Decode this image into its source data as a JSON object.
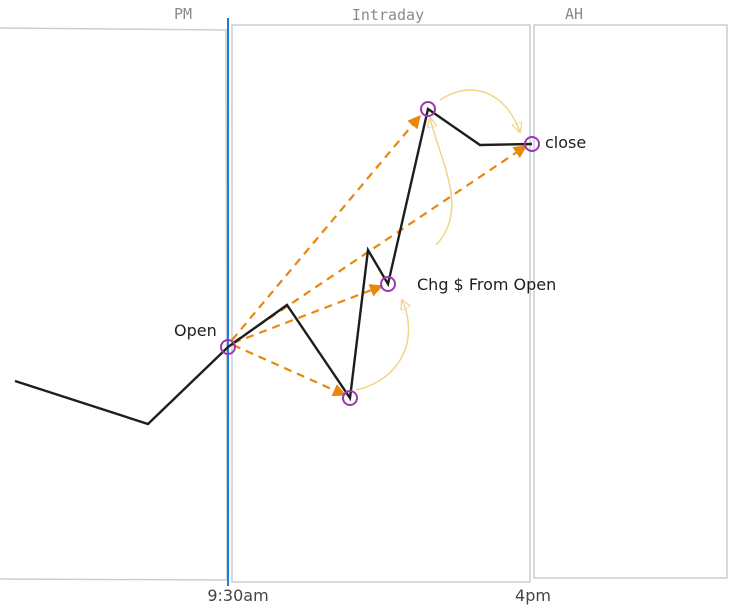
{
  "sections": {
    "pm": "PM",
    "intraday": "Intraday",
    "ah": "AH"
  },
  "labels": {
    "open": "Open",
    "close": "close",
    "change": "Chg $ From Open"
  },
  "axis": {
    "start": "9:30am",
    "end": "4pm"
  }
}
